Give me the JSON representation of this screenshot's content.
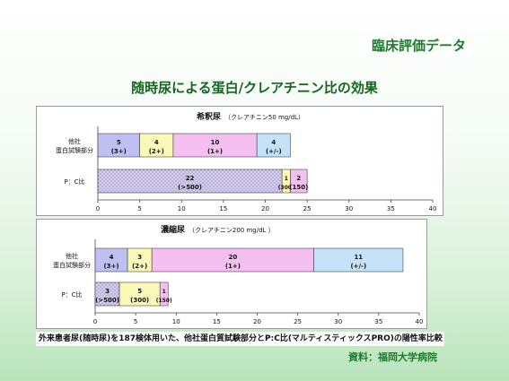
{
  "header": {
    "brand": "臨床評価データ",
    "title": "随時尿による蛋白/クレアチニン比の効果"
  },
  "footnote": "外来患者尿(随時尿)を187検体用いた、他社蛋白質試験部分とP:C比(マルティスティックスPRO)の陽性率比較",
  "source": "資料：福岡大学病院",
  "colors": {
    "grade_3plus": "#bfbff2",
    "grade_2plus": "#fbf9b8",
    "grade_1plus": "#f6bff2",
    "grade_pm": "#c4e2f9",
    "pc_gt500": "#d6d0ee",
    "pc_300": "#fbf9b8",
    "pc_150": "#f6bff2"
  },
  "chart_data": [
    {
      "type": "bar",
      "title": "希釈尿",
      "subtitle": "（クレアチニン50 mg/dL）",
      "xlim": [
        0,
        40
      ],
      "xticks": [
        0,
        5,
        10,
        15,
        20,
        25,
        30,
        35,
        40
      ],
      "categories": [
        "他社\n蛋白試験部分",
        "P：C比"
      ],
      "rows": [
        {
          "label_line1": "他社",
          "label_line2": "蛋白試験部分",
          "segments": [
            {
              "value": 5,
              "grade": "(3+)",
              "color": "#bfbff2"
            },
            {
              "value": 4,
              "grade": "(2+)",
              "color": "#fbf9b8"
            },
            {
              "value": 10,
              "grade": "(1+)",
              "color": "#f6bff2"
            },
            {
              "value": 4,
              "grade": "(+/-)",
              "color": "#c4e2f9"
            }
          ]
        },
        {
          "label_line1": "P：C比",
          "label_line2": "",
          "segments": [
            {
              "value": 22,
              "grade": "(>500)",
              "color": "#d6d0ee",
              "dotted": true
            },
            {
              "value": 1,
              "grade": "(300)",
              "color": "#fbf9b8"
            },
            {
              "value": 2,
              "grade": "(150)",
              "color": "#f6bff2"
            }
          ]
        }
      ]
    },
    {
      "type": "bar",
      "title": "濃縮尿",
      "subtitle": "（クレアチニン200 mg/dL ）",
      "xlim": [
        0,
        40
      ],
      "xticks": [
        0,
        5,
        10,
        15,
        20,
        25,
        30,
        35,
        40
      ],
      "categories": [
        "他社\n蛋白試験部分",
        "P：C比"
      ],
      "rows": [
        {
          "label_line1": "他社",
          "label_line2": "蛋白試験部分",
          "segments": [
            {
              "value": 4,
              "grade": "(3+)",
              "color": "#bfbff2"
            },
            {
              "value": 3,
              "grade": "(2+)",
              "color": "#fbf9b8"
            },
            {
              "value": 20,
              "grade": "(1+)",
              "color": "#f6bff2"
            },
            {
              "value": 11,
              "grade": "(+/-)",
              "color": "#c4e2f9"
            }
          ]
        },
        {
          "label_line1": "P：C比",
          "label_line2": "",
          "segments": [
            {
              "value": 3,
              "grade": "(>500)",
              "color": "#d6d0ee",
              "dotted": true
            },
            {
              "value": 5,
              "grade": "(300)",
              "color": "#fbf9b8"
            },
            {
              "value": 1,
              "grade": "(150)",
              "color": "#f6bff2"
            }
          ]
        }
      ]
    }
  ]
}
